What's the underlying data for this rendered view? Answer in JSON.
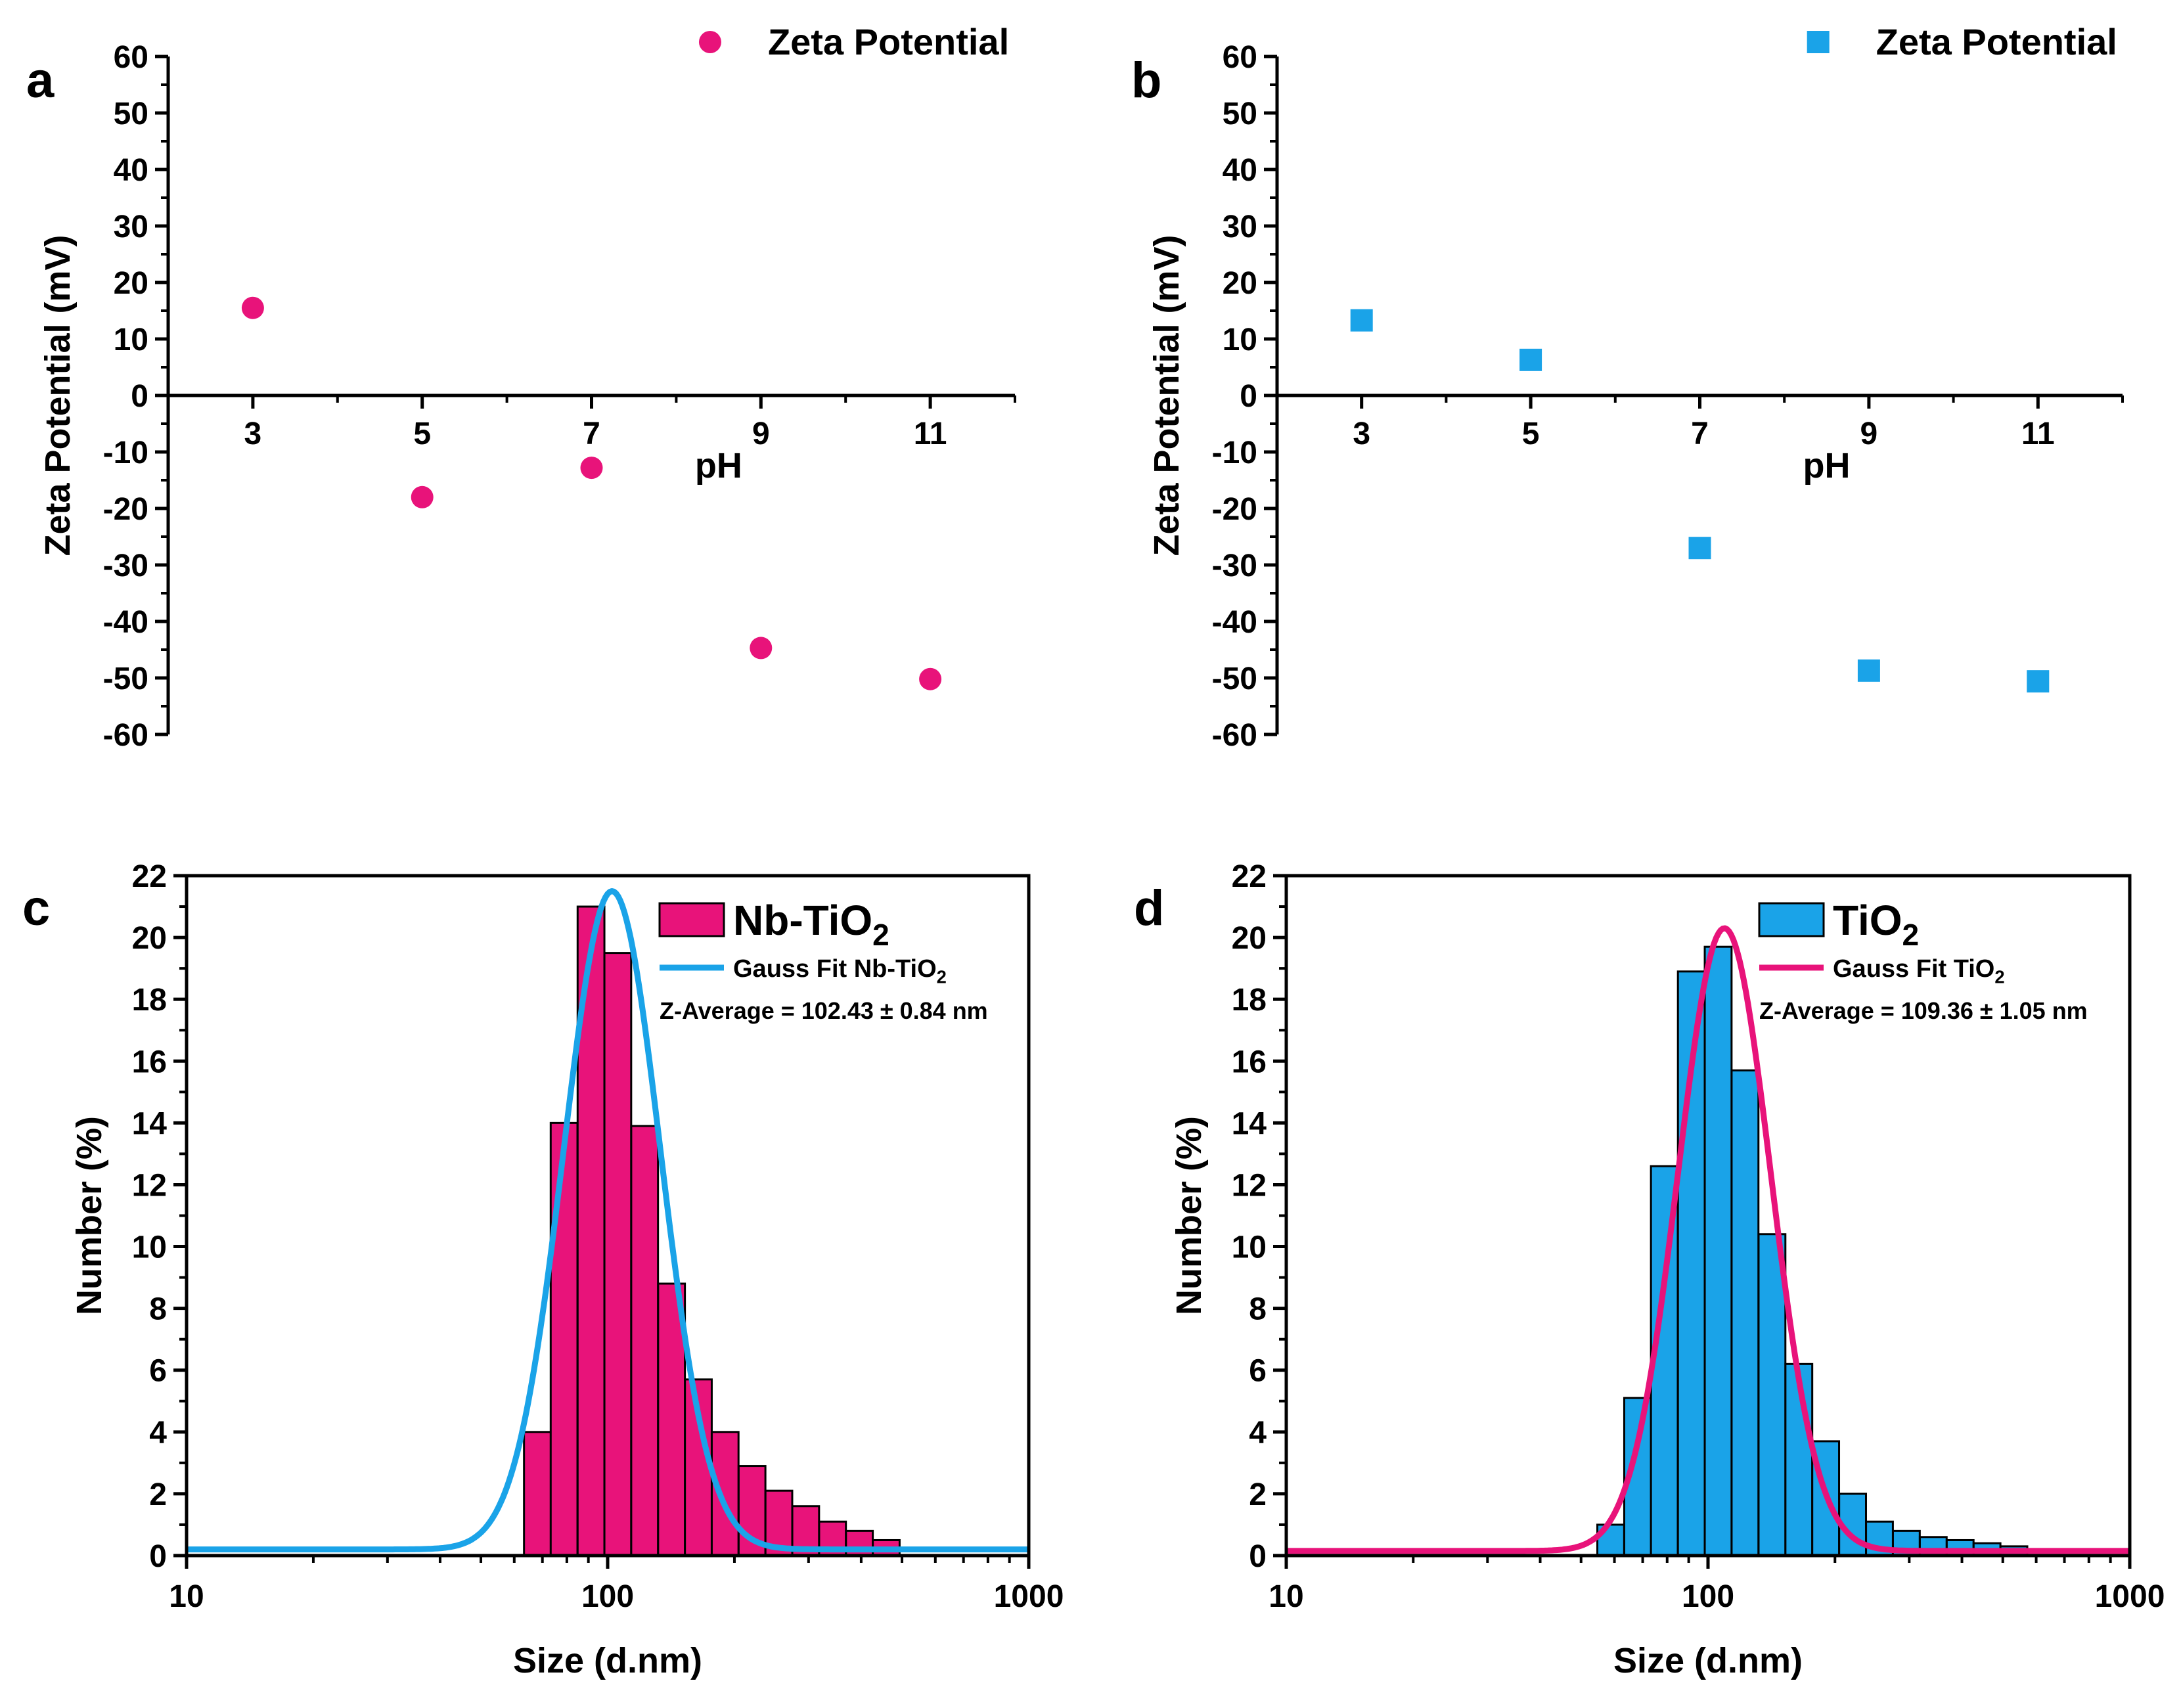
{
  "colors": {
    "pink": "#e8137a",
    "blue": "#1aa3e8",
    "axis": "#000000"
  },
  "chart_data": [
    {
      "id": "a",
      "panel_label": "a",
      "type": "scatter",
      "marker": "circle",
      "color": "#e8137a",
      "legend": "Zeta Potential",
      "xlabel": "pH",
      "ylabel": "Zeta Potential (mV)",
      "xlim": [
        2,
        12
      ],
      "ylim": [
        -60,
        60
      ],
      "xticks": [
        3,
        5,
        7,
        9,
        11
      ],
      "xtick_labels": [
        "3",
        "5",
        "7",
        "9",
        "11"
      ],
      "yticks": [
        60,
        50,
        40,
        30,
        20,
        10,
        0,
        -10,
        -20,
        -30,
        -40,
        -50,
        -60
      ],
      "ytick_labels": [
        "60",
        "50",
        "40",
        "30",
        "20",
        "10",
        "0",
        "-10",
        "-20",
        "-30",
        "-40",
        "-50",
        "-60"
      ],
      "points": [
        {
          "x": 3,
          "y": 15.5
        },
        {
          "x": 5,
          "y": -18
        },
        {
          "x": 7,
          "y": -12.8
        },
        {
          "x": 9,
          "y": -44.7
        },
        {
          "x": 11,
          "y": -50.2
        }
      ]
    },
    {
      "id": "b",
      "panel_label": "b",
      "type": "scatter",
      "marker": "square",
      "color": "#1aa3e8",
      "legend": "Zeta Potential",
      "xlabel": "pH",
      "ylabel": "Zeta Potential (mV)",
      "xlim": [
        2,
        12
      ],
      "ylim": [
        -60,
        60
      ],
      "xticks": [
        3,
        5,
        7,
        9,
        11
      ],
      "xtick_labels": [
        "3",
        "5",
        "7",
        "9",
        "11"
      ],
      "yticks": [
        60,
        50,
        40,
        30,
        20,
        10,
        0,
        -10,
        -20,
        -30,
        -40,
        -50,
        -60
      ],
      "ytick_labels": [
        "60",
        "50",
        "40",
        "30",
        "20",
        "10",
        "0",
        "-10",
        "-20",
        "-30",
        "-40",
        "-50",
        "-60"
      ],
      "points": [
        {
          "x": 3,
          "y": 13.3
        },
        {
          "x": 5,
          "y": 6.3
        },
        {
          "x": 7,
          "y": -27
        },
        {
          "x": 9,
          "y": -48.7
        },
        {
          "x": 11,
          "y": -50.6
        }
      ]
    },
    {
      "id": "c",
      "panel_label": "c",
      "type": "bar",
      "xscale": "log",
      "bar_color": "#e8137a",
      "fit_color": "#1aa3e8",
      "legend_bar": "Nb-TiO",
      "legend_bar_sub": "2",
      "legend_fit": "Gauss Fit Nb-TiO",
      "legend_fit_sub": "2",
      "annotation": "Z-Average = 102.43 ± 0.84 nm",
      "xlabel": "Size (d.nm)",
      "ylabel": "Number (%)",
      "xlim": [
        10,
        1000
      ],
      "ylim": [
        0,
        22
      ],
      "xticks": [
        10,
        100,
        1000
      ],
      "xtick_labels": [
        "10",
        "100",
        "1000"
      ],
      "yticks": [
        0,
        2,
        4,
        6,
        8,
        10,
        12,
        14,
        16,
        18,
        20,
        22
      ],
      "ytick_labels": [
        "0",
        "2",
        "4",
        "6",
        "8",
        "10",
        "12",
        "14",
        "16",
        "18",
        "20",
        "22"
      ],
      "bars": [
        {
          "x": 68.1,
          "y": 4.0
        },
        {
          "x": 78.8,
          "y": 14.0
        },
        {
          "x": 91.3,
          "y": 21.0
        },
        {
          "x": 105.7,
          "y": 19.5
        },
        {
          "x": 122.4,
          "y": 13.9
        },
        {
          "x": 141.8,
          "y": 8.8
        },
        {
          "x": 164.2,
          "y": 5.7
        },
        {
          "x": 190.1,
          "y": 4.0
        },
        {
          "x": 220.2,
          "y": 2.9
        },
        {
          "x": 255.0,
          "y": 2.1
        },
        {
          "x": 295.3,
          "y": 1.6
        },
        {
          "x": 342.0,
          "y": 1.1
        },
        {
          "x": 396.1,
          "y": 0.8
        },
        {
          "x": 458.7,
          "y": 0.5
        }
      ],
      "fit": {
        "center": 102.43,
        "peak": 21.5,
        "baseline": 0.2,
        "sigma_log10": 0.115
      }
    },
    {
      "id": "d",
      "panel_label": "d",
      "type": "bar",
      "xscale": "log",
      "bar_color": "#1aa3e8",
      "fit_color": "#e8137a",
      "legend_bar": "TiO",
      "legend_bar_sub": "2",
      "legend_fit": "Gauss Fit TiO",
      "legend_fit_sub": "2",
      "annotation": "Z-Average = 109.36 ± 1.05 nm",
      "xlabel": "Size (d.nm)",
      "ylabel": "Number (%)",
      "xlim": [
        10,
        1000
      ],
      "ylim": [
        0,
        22
      ],
      "xticks": [
        10,
        100,
        1000
      ],
      "xtick_labels": [
        "10",
        "100",
        "1000"
      ],
      "yticks": [
        0,
        2,
        4,
        6,
        8,
        10,
        12,
        14,
        16,
        18,
        20,
        22
      ],
      "ytick_labels": [
        "0",
        "2",
        "4",
        "6",
        "8",
        "10",
        "12",
        "14",
        "16",
        "18",
        "20",
        "22"
      ],
      "bars": [
        {
          "x": 58.8,
          "y": 1.0
        },
        {
          "x": 68.1,
          "y": 5.1
        },
        {
          "x": 78.8,
          "y": 12.6
        },
        {
          "x": 91.3,
          "y": 18.9
        },
        {
          "x": 105.7,
          "y": 19.7
        },
        {
          "x": 122.4,
          "y": 15.7
        },
        {
          "x": 141.8,
          "y": 10.4
        },
        {
          "x": 164.2,
          "y": 6.2
        },
        {
          "x": 190.1,
          "y": 3.7
        },
        {
          "x": 220.2,
          "y": 2.0
        },
        {
          "x": 255.0,
          "y": 1.1
        },
        {
          "x": 295.3,
          "y": 0.8
        },
        {
          "x": 342.0,
          "y": 0.6
        },
        {
          "x": 396.1,
          "y": 0.5
        },
        {
          "x": 458.7,
          "y": 0.4
        },
        {
          "x": 531.1,
          "y": 0.3
        }
      ],
      "fit": {
        "center": 109.36,
        "peak": 20.3,
        "baseline": 0.15,
        "sigma_log10": 0.11
      }
    }
  ]
}
